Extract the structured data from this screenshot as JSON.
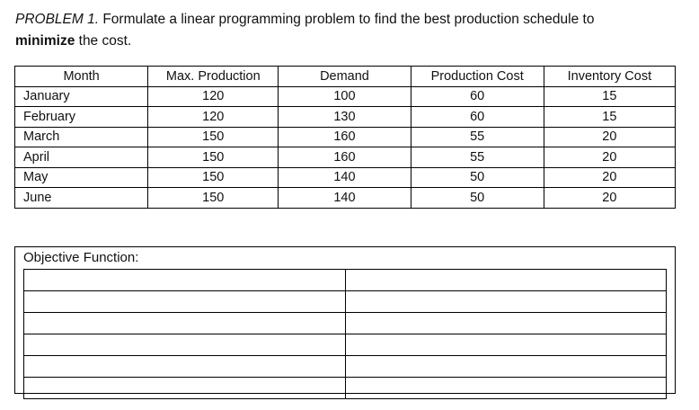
{
  "problem": {
    "label": "PROBLEM 1.",
    "text": " Formulate a linear programming problem to find the best production schedule to",
    "bold": "minimize",
    "tail": " the cost."
  },
  "table": {
    "headers": [
      "Month",
      "Max. Production",
      "Demand",
      "Production Cost",
      "Inventory Cost"
    ],
    "rows": [
      [
        "January",
        "120",
        "100",
        "60",
        "15"
      ],
      [
        "February",
        "120",
        "130",
        "60",
        "15"
      ],
      [
        "March",
        "150",
        "160",
        "55",
        "20"
      ],
      [
        "April",
        "150",
        "160",
        "55",
        "20"
      ],
      [
        "May",
        "150",
        "140",
        "50",
        "20"
      ],
      [
        "June",
        "150",
        "140",
        "50",
        "20"
      ]
    ]
  },
  "objective": {
    "label": "Objective Function:"
  }
}
